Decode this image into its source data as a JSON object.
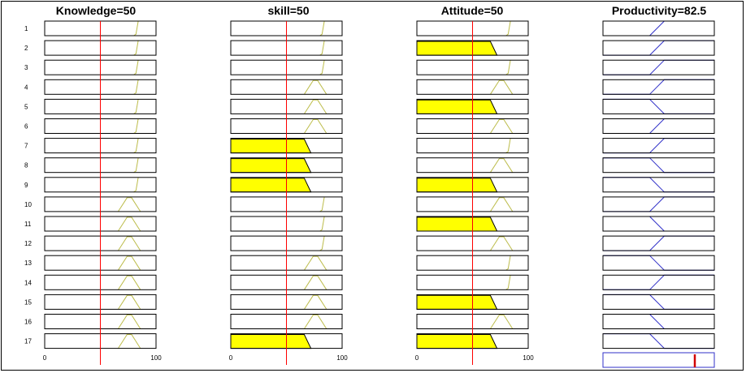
{
  "columns": [
    {
      "title": "Knowledge=50",
      "input_value": 50,
      "range": [
        0,
        100
      ],
      "ticks": [
        "0",
        "100"
      ],
      "rule_mf": [
        "high",
        "high",
        "high",
        "high",
        "high",
        "high",
        "high",
        "high",
        "high",
        "med",
        "med",
        "med",
        "med",
        "med",
        "med",
        "med",
        "med"
      ],
      "rule_fill": [
        0,
        0,
        0,
        0,
        0,
        0,
        0,
        0,
        0,
        0,
        0,
        0,
        0,
        0,
        0,
        0,
        0
      ]
    },
    {
      "title": "skill=50",
      "input_value": 50,
      "range": [
        0,
        100
      ],
      "ticks": [
        "0",
        "100"
      ],
      "rule_mf": [
        "high",
        "high",
        "high",
        "med",
        "med",
        "med",
        "low",
        "low",
        "low",
        "high",
        "high",
        "high",
        "med",
        "med",
        "med",
        "med",
        "low"
      ],
      "rule_fill": [
        0,
        0,
        0,
        0,
        0,
        0,
        1,
        1,
        1,
        0,
        0,
        0,
        0,
        0,
        0,
        0,
        1
      ]
    },
    {
      "title": "Attitude=50",
      "input_value": 50,
      "range": [
        0,
        100
      ],
      "ticks": [
        "0",
        "100"
      ],
      "rule_mf": [
        "high",
        "low",
        "high",
        "med",
        "low",
        "med",
        "high",
        "med",
        "low",
        "med",
        "low",
        "med",
        "high",
        "high",
        "low",
        "med",
        "low"
      ],
      "rule_fill": [
        0,
        1,
        0,
        0,
        1,
        0,
        0,
        0,
        1,
        0,
        1,
        0,
        0,
        0,
        1,
        0,
        1
      ]
    },
    {
      "title": "Productivity=82.5",
      "output_value": 82.5,
      "range": [
        0,
        100
      ],
      "rule_mf": [
        "up",
        "up",
        "up",
        "up",
        "down",
        "up",
        "up",
        "down",
        "down",
        "up",
        "down",
        "up",
        "down",
        "up",
        "down",
        "down",
        "down"
      ]
    }
  ],
  "rows": [
    "1",
    "2",
    "3",
    "4",
    "5",
    "6",
    "7",
    "8",
    "9",
    "10",
    "11",
    "12",
    "13",
    "14",
    "15",
    "16",
    "17"
  ],
  "colors": {
    "fill": "#ffff00",
    "input_line": "#ff0000",
    "input_mf": "#bcbc4a",
    "output_mf": "#3030c8",
    "output_marker": "#d00000",
    "box_border": "#000000"
  }
}
